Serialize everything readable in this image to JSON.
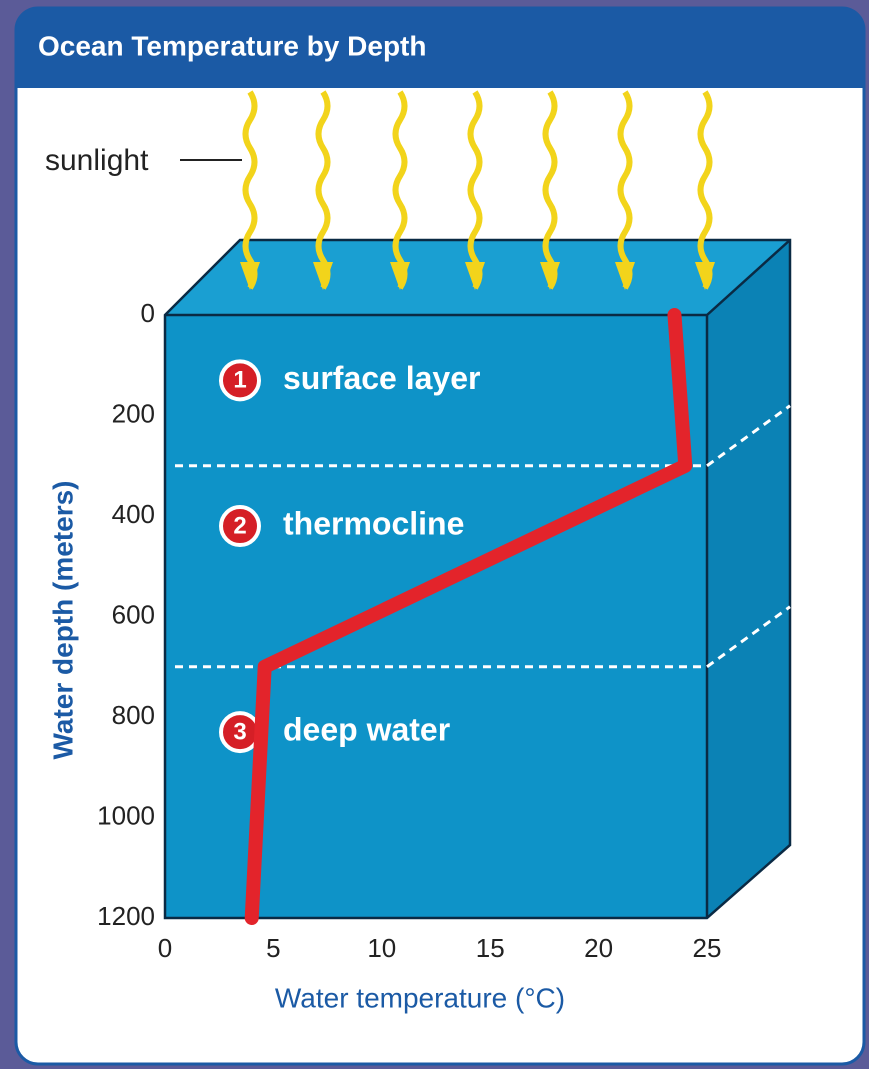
{
  "chart_data": {
    "type": "line",
    "title": "Ocean Temperature by Depth",
    "x_label": "Water temperature (°C)",
    "y_label": "Water depth (meters)",
    "annotation": "sunlight",
    "x": [
      23.5,
      24,
      4.6,
      4
    ],
    "values": [
      0,
      300,
      700,
      1200
    ],
    "color": "#e3242b",
    "xlim": [
      0,
      25
    ],
    "xticks": [
      0,
      5,
      10,
      15,
      20,
      25
    ],
    "ylim": [
      0,
      1200
    ],
    "yticks": [
      0,
      200,
      400,
      600,
      800,
      1000,
      1200
    ],
    "y_inverted": true,
    "layer_boundaries": [
      300,
      700
    ],
    "layers": [
      {
        "number": "1",
        "label": "surface layer",
        "depth": 130
      },
      {
        "number": "2",
        "label": "thermocline",
        "depth": 420
      },
      {
        "number": "3",
        "label": "deep water",
        "depth": 830
      }
    ]
  }
}
